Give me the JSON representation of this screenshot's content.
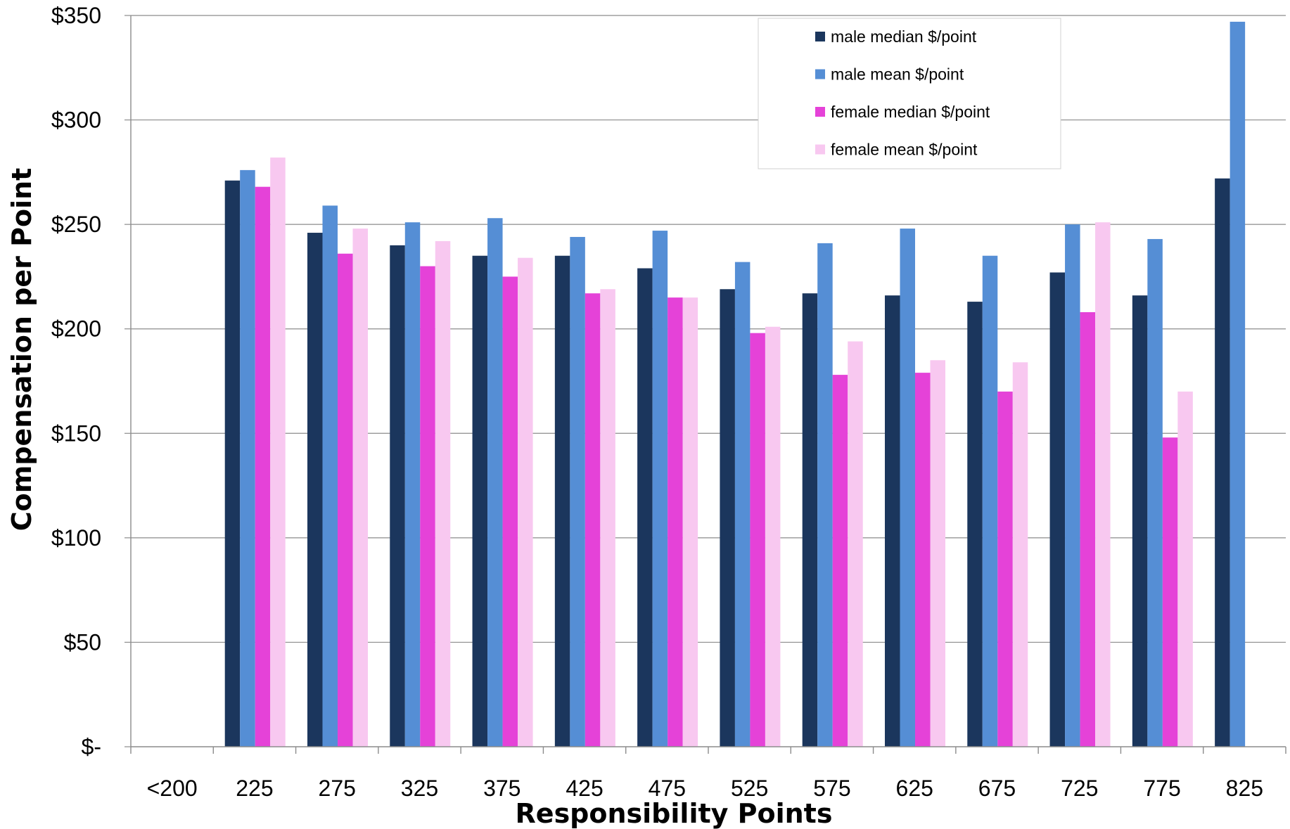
{
  "chart_data": {
    "type": "bar",
    "title": "",
    "xlabel": "Responsibility Points",
    "ylabel": "Compensation per Point",
    "categories": [
      "<200",
      "225",
      "275",
      "325",
      "375",
      "425",
      "475",
      "525",
      "575",
      "625",
      "675",
      "725",
      "775",
      "825"
    ],
    "y_ticks": [
      "$-",
      "$50",
      "$100",
      "$150",
      "$200",
      "$250",
      "$300",
      "$350"
    ],
    "ylim": [
      0,
      350
    ],
    "grid": "horizontal",
    "legend_position": "top-right",
    "series": [
      {
        "name": "male median $/point",
        "color": "#1b365d",
        "values": [
          null,
          271,
          246,
          240,
          235,
          235,
          229,
          219,
          217,
          216,
          213,
          227,
          216,
          272
        ]
      },
      {
        "name": "male mean $/point",
        "color": "#558ed5",
        "values": [
          null,
          276,
          259,
          251,
          253,
          244,
          247,
          232,
          241,
          248,
          235,
          250,
          243,
          347
        ]
      },
      {
        "name": "female median $/point",
        "color": "#e542d8",
        "values": [
          null,
          268,
          236,
          230,
          225,
          217,
          215,
          198,
          178,
          179,
          170,
          208,
          148,
          null
        ]
      },
      {
        "name": "female mean $/point",
        "color": "#f8c8f0",
        "values": [
          null,
          282,
          248,
          242,
          234,
          219,
          215,
          201,
          194,
          185,
          184,
          251,
          170,
          null
        ]
      }
    ]
  }
}
